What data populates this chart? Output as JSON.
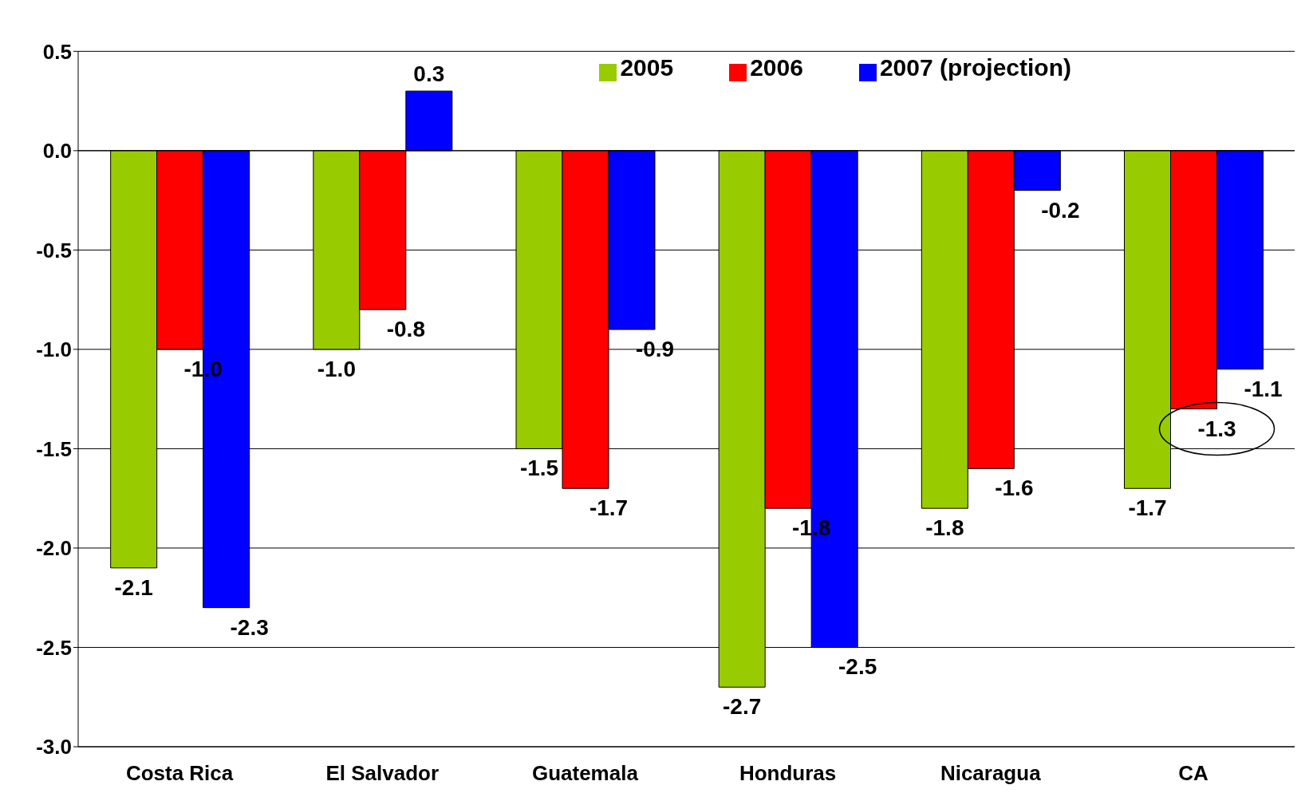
{
  "chart_data": {
    "type": "bar",
    "categories": [
      "Costa Rica",
      "El Salvador",
      "Guatemala",
      "Honduras",
      "Nicaragua",
      "CA"
    ],
    "series": [
      {
        "name": "2005",
        "color": "#99cc00",
        "values": [
          -2.1,
          -1.0,
          -1.5,
          -2.7,
          -1.8,
          -1.7
        ],
        "value_labels": [
          "-2.1",
          "-1.0",
          "-1.5",
          "-2.7",
          "-1.8",
          "-1.7"
        ]
      },
      {
        "name": "2006",
        "color": "#ff0000",
        "values": [
          -1.0,
          -0.8,
          -1.7,
          -1.8,
          -1.6,
          -1.3
        ],
        "value_labels": [
          "-1.0",
          "-0.8",
          "-1.7",
          "-1.8",
          "-1.6",
          "-1.3"
        ]
      },
      {
        "name": "2007 (projection)",
        "color": "#0000ff",
        "values": [
          -2.3,
          0.3,
          -0.9,
          -2.5,
          -0.2,
          -1.1
        ],
        "value_labels": [
          "-2.3",
          "0.3",
          "-0.9",
          "-2.5",
          "-0.2",
          "-1.1"
        ]
      }
    ],
    "ylim": [
      -3.0,
      0.5
    ],
    "yticks": [
      {
        "value": -3.0,
        "label": "-3.0"
      },
      {
        "value": -2.5,
        "label": "-2.5"
      },
      {
        "value": -2.0,
        "label": "-2.0"
      },
      {
        "value": -1.5,
        "label": "-1.5"
      },
      {
        "value": -1.0,
        "label": "-1.0"
      },
      {
        "value": -0.5,
        "label": "-0.5"
      },
      {
        "value": 0,
        "label": "0.0"
      },
      {
        "value": 0.5,
        "label": "0.5"
      }
    ],
    "grid": "y",
    "legend": "top right"
  }
}
